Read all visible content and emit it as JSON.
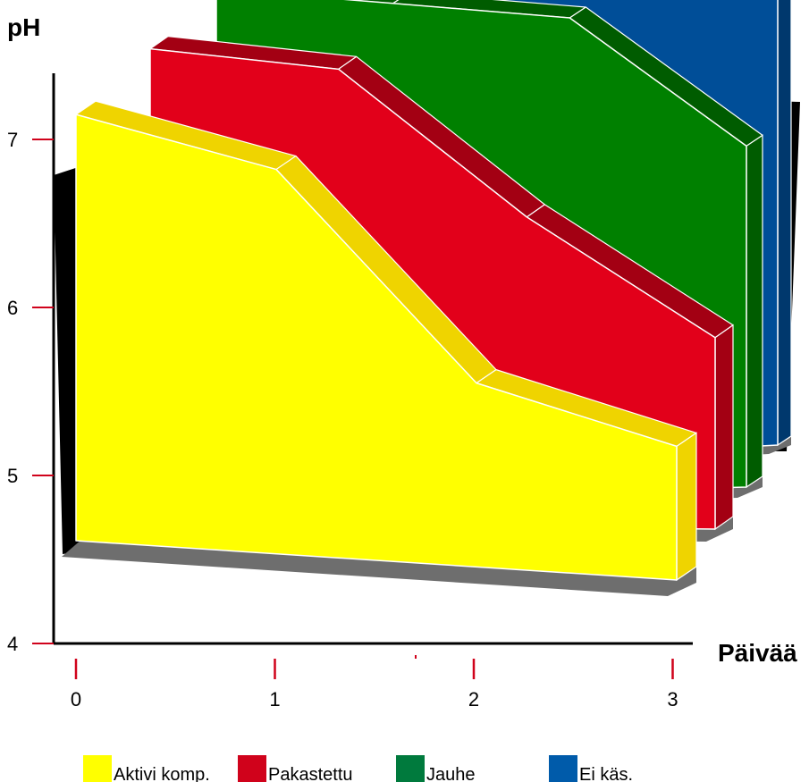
{
  "chart_data": {
    "type": "area",
    "style": "3d-ribbon",
    "ylabel": "pH",
    "xlabel": "Päivää",
    "x": [
      0,
      1,
      2,
      3
    ],
    "ylim": [
      4,
      7
    ],
    "yticks": [
      4,
      5,
      6,
      7
    ],
    "xticks": [
      0,
      1,
      2,
      3
    ],
    "grid": false,
    "legend_position": "bottom",
    "series": [
      {
        "name": "Aktivi komp.",
        "color": "#FFFF00",
        "values": [
          6.55,
          6.3,
          5.1,
          4.8
        ]
      },
      {
        "name": "Pakastettu",
        "color": "#E2001A",
        "values": [
          6.6,
          6.5,
          5.7,
          5.05
        ]
      },
      {
        "name": "Jauhe",
        "color": "#008000",
        "values": [
          6.7,
          6.6,
          6.5,
          5.8
        ]
      },
      {
        "name": "Ei käs.",
        "color": "#004E98",
        "values": [
          6.75,
          6.75,
          6.75,
          6.5
        ]
      }
    ]
  }
}
